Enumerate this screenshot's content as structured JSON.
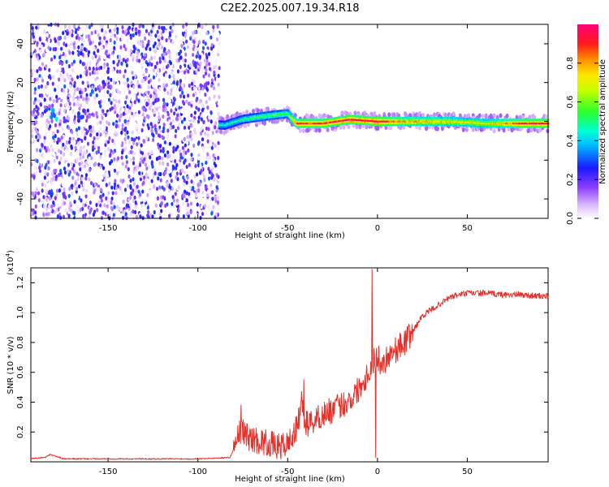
{
  "title": "C2E2.2025.007.19.34.R18",
  "colors": {
    "snr_line": "#e8302a",
    "axis": "#000000",
    "background": "#ffffff"
  },
  "chart_data": [
    {
      "type": "heatmap",
      "xlabel": "Height of straight line (km)",
      "ylabel": "Frequency (Hz)",
      "xlim": [
        -193,
        95
      ],
      "ylim": [
        -50,
        50
      ],
      "xticks": [
        -150,
        -100,
        -50,
        0,
        50
      ],
      "yticks": [
        -40,
        -20,
        0,
        20,
        40
      ],
      "colorbar": {
        "label": "Normalized spectral amplitude",
        "range": [
          0,
          1
        ],
        "ticks": [
          0.0,
          0.2,
          0.4,
          0.6,
          0.8
        ],
        "colormap": "rainbow (white-violet-blue-cyan-green-yellow-red)"
      },
      "signal_trace": [
        {
          "x": -180,
          "freq": 4,
          "amplitude": 0.5
        },
        {
          "x": -165,
          "freq": 3,
          "amplitude": 0.3
        },
        {
          "x": -85,
          "freq": -2,
          "amplitude": 0.45
        },
        {
          "x": -75,
          "freq": 1,
          "amplitude": 0.5
        },
        {
          "x": -60,
          "freq": 3,
          "amplitude": 0.55
        },
        {
          "x": -50,
          "freq": 4,
          "amplitude": 0.55
        },
        {
          "x": -45,
          "freq": -1,
          "amplitude": 0.9
        },
        {
          "x": -30,
          "freq": -1,
          "amplitude": 0.9
        },
        {
          "x": -15,
          "freq": 1,
          "amplitude": 0.95
        },
        {
          "x": 0,
          "freq": 0,
          "amplitude": 0.95
        },
        {
          "x": 15,
          "freq": 0,
          "amplitude": 0.8
        },
        {
          "x": 40,
          "freq": 0,
          "amplitude": 0.75
        },
        {
          "x": 60,
          "freq": -1,
          "amplitude": 0.7
        },
        {
          "x": 80,
          "freq": -1,
          "amplitude": 0.9
        },
        {
          "x": 95,
          "freq": -1,
          "amplitude": 0.95
        }
      ]
    },
    {
      "type": "line",
      "xlabel": "Height of straight line (km)",
      "ylabel": "SNR (10 * v/v)",
      "y_multiplier": "(x10",
      "y_multiplier_exp": "4",
      "y_multiplier_close": ")",
      "xlim": [
        -193,
        95
      ],
      "ylim": [
        0,
        1.3
      ],
      "xticks": [
        -150,
        -100,
        -50,
        0,
        50
      ],
      "yticks": [
        0.2,
        0.4,
        0.6,
        0.8,
        1.0,
        1.2
      ],
      "series": [
        {
          "x": [
            -193,
            -185,
            -182,
            -175,
            -150,
            -120,
            -100,
            -90,
            -82,
            -79,
            -76,
            -73,
            -70,
            -65,
            -60,
            -55,
            -50,
            -45,
            -42,
            -40,
            -35,
            -30,
            -25,
            -20,
            -15,
            -10,
            -5,
            -2,
            0,
            3,
            6,
            10,
            15,
            20,
            25,
            30,
            35,
            40,
            45,
            50,
            60,
            70,
            80,
            90,
            95
          ],
          "y": [
            0.02,
            0.03,
            0.05,
            0.02,
            0.02,
            0.02,
            0.02,
            0.025,
            0.03,
            0.12,
            0.22,
            0.18,
            0.15,
            0.14,
            0.12,
            0.1,
            0.12,
            0.22,
            0.4,
            0.25,
            0.28,
            0.32,
            0.35,
            0.38,
            0.42,
            0.5,
            0.6,
            0.68,
            0.7,
            0.65,
            0.72,
            0.75,
            0.8,
            0.88,
            0.98,
            1.02,
            1.06,
            1.1,
            1.12,
            1.13,
            1.13,
            1.12,
            1.12,
            1.11,
            1.11
          ]
        }
      ],
      "spikes": [
        {
          "x": -76,
          "y": 0.38
        },
        {
          "x": -41,
          "y": 0.55
        },
        {
          "x": -3,
          "y": 1.29
        },
        {
          "x": -1,
          "y": 0.03
        }
      ]
    }
  ]
}
